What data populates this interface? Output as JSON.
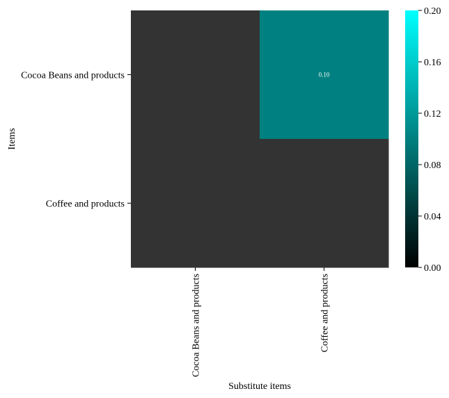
{
  "chart_data": {
    "type": "heatmap",
    "title": "",
    "xlabel": "Substitute items",
    "ylabel": "Items",
    "x_categories": [
      "Cocoa Beans and products",
      "Coffee and products"
    ],
    "y_categories": [
      "Cocoa Beans and products",
      "Coffee and products"
    ],
    "values": [
      [
        null,
        0.1
      ],
      [
        null,
        null
      ]
    ],
    "cell_labels": [
      [
        "",
        "0.10"
      ],
      [
        "",
        ""
      ]
    ],
    "missing_color": "#333333",
    "colormap": [
      "#000000",
      "#00ffff"
    ],
    "vmin": 0.0,
    "vmax": 0.2,
    "colorbar_ticks": [
      "0.00",
      "0.04",
      "0.08",
      "0.12",
      "0.16",
      "0.20"
    ],
    "colorbar_tick_values": [
      0.0,
      0.04,
      0.08,
      0.12,
      0.16,
      0.2
    ],
    "grid": false,
    "legend": "colorbar-right"
  }
}
